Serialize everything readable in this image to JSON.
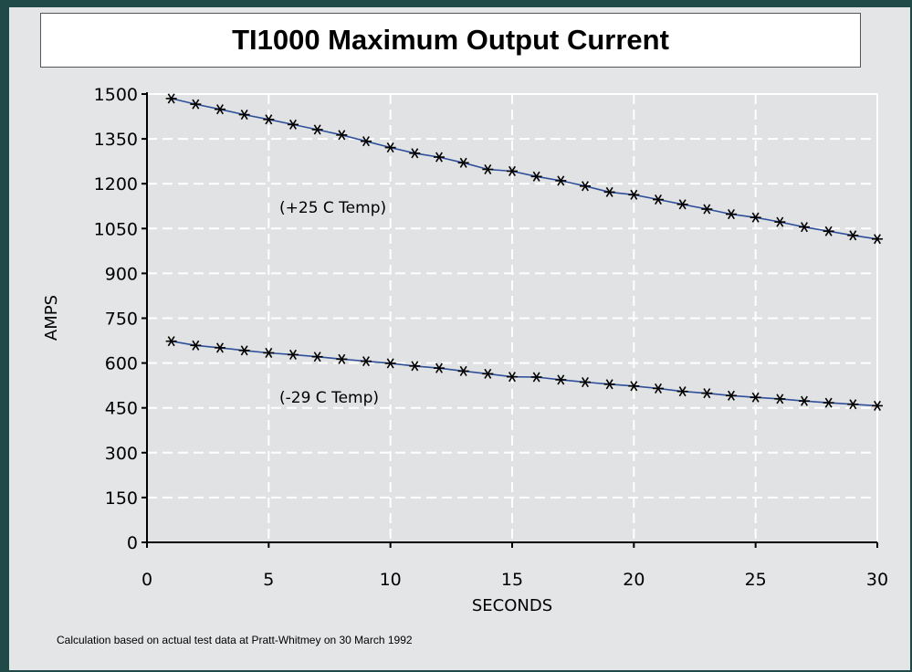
{
  "chart_data": {
    "type": "line",
    "title": "TI1000 Maximum Output Current",
    "xlabel": "SECONDS",
    "ylabel": "AMPS",
    "xlim": [
      0,
      30
    ],
    "ylim": [
      0,
      1500
    ],
    "xticks": [
      "0",
      "5",
      "10",
      "15",
      "20",
      "25",
      "30"
    ],
    "yticks": [
      "0",
      "150",
      "300",
      "450",
      "600",
      "750",
      "900",
      "1050",
      "1200",
      "1350",
      "1500"
    ],
    "grid": true,
    "x": [
      1,
      2,
      3,
      4,
      5,
      6,
      7,
      8,
      9,
      10,
      11,
      12,
      13,
      14,
      15,
      16,
      17,
      18,
      19,
      20,
      21,
      22,
      23,
      24,
      25,
      26,
      27,
      28,
      29,
      30
    ],
    "series": [
      {
        "annotation": "(+25 C Temp)",
        "values": [
          1485,
          1466,
          1449,
          1431,
          1415,
          1398,
          1381,
          1363,
          1342,
          1321,
          1302,
          1289,
          1270,
          1248,
          1242,
          1224,
          1210,
          1192,
          1172,
          1163,
          1147,
          1131,
          1115,
          1098,
          1087,
          1072,
          1055,
          1041,
          1027,
          1015
        ]
      },
      {
        "annotation": "(-29 C Temp)",
        "values": [
          673,
          659,
          651,
          642,
          634,
          628,
          621,
          613,
          606,
          599,
          590,
          583,
          573,
          564,
          554,
          553,
          544,
          536,
          529,
          523,
          515,
          505,
          499,
          491,
          485,
          480,
          473,
          467,
          462,
          457
        ]
      }
    ],
    "line_color": "#2f4f9a",
    "marker": "asterisk"
  },
  "footnote": "Calculation based on actual test data at Pratt-Whitmey on 30 March 1992"
}
